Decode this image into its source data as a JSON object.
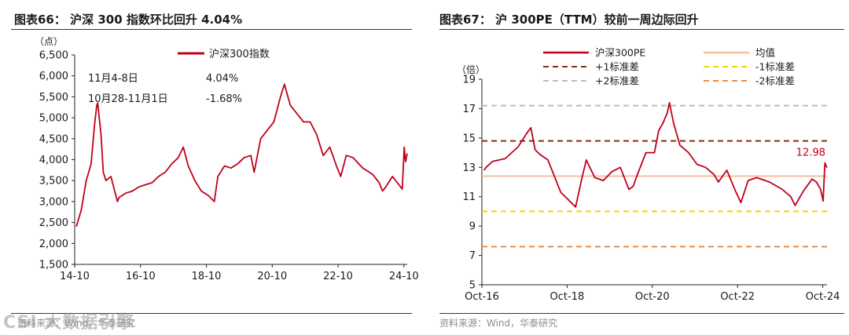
{
  "colors": {
    "index_line": "#c0001a",
    "pe_line": "#c0001a",
    "mean": "#f2c0a0",
    "plus1": "#8b2a12",
    "plus2": "#bdbdbd",
    "minus1": "#f2d400",
    "minus2": "#f08a3c",
    "rule": "#1f3a66"
  },
  "watermark": "CSI 大数据引擎",
  "chart_data": [
    {
      "type": "line",
      "title": "图表66：  沪深 300 指数环比回升 4.04%",
      "ylabel": "（点）",
      "ylim": [
        1500,
        6500
      ],
      "yticks": [
        "1,500",
        "2,000",
        "2,500",
        "3,000",
        "3,500",
        "4,000",
        "4,500",
        "5,000",
        "5,500",
        "6,000",
        "6,500"
      ],
      "xticks": [
        "14-10",
        "16-10",
        "18-10",
        "20-10",
        "22-10",
        "24-10"
      ],
      "legend": "沪深300指数",
      "legend_position": "top-center",
      "annotations": [
        {
          "label": "11月4-8日",
          "value": "4.04%"
        },
        {
          "label": "10月28-11月1日",
          "value": "-1.68%"
        }
      ],
      "series": [
        {
          "name": "沪深300指数",
          "x": [
            2014.8,
            2014.95,
            2015.1,
            2015.25,
            2015.35,
            2015.42,
            2015.45,
            2015.55,
            2015.62,
            2015.7,
            2015.85,
            2016.05,
            2016.1,
            2016.3,
            2016.5,
            2016.7,
            2016.9,
            2017.1,
            2017.3,
            2017.5,
            2017.7,
            2017.9,
            2018.05,
            2018.2,
            2018.4,
            2018.6,
            2018.8,
            2018.99,
            2019.1,
            2019.3,
            2019.5,
            2019.7,
            2019.9,
            2020.1,
            2020.2,
            2020.4,
            2020.6,
            2020.8,
            2021.0,
            2021.12,
            2021.3,
            2021.5,
            2021.7,
            2021.9,
            2022.1,
            2022.3,
            2022.5,
            2022.7,
            2022.83,
            2023.0,
            2023.2,
            2023.5,
            2023.8,
            2024.0,
            2024.1,
            2024.2,
            2024.4,
            2024.6,
            2024.7,
            2024.76,
            2024.8,
            2024.85
          ],
          "values": [
            2400,
            2800,
            3500,
            3900,
            4800,
            5300,
            5350,
            4600,
            3700,
            3500,
            3600,
            3000,
            3100,
            3200,
            3250,
            3350,
            3400,
            3450,
            3600,
            3700,
            3900,
            4050,
            4300,
            3850,
            3500,
            3250,
            3150,
            3000,
            3600,
            3850,
            3800,
            3900,
            4050,
            4100,
            3700,
            4500,
            4700,
            4900,
            5500,
            5800,
            5300,
            5100,
            4900,
            4900,
            4600,
            4100,
            4300,
            3850,
            3600,
            4100,
            4050,
            3800,
            3650,
            3450,
            3250,
            3350,
            3600,
            3400,
            3300,
            4300,
            3950,
            4150
          ]
        }
      ]
    },
    {
      "type": "line",
      "title": "图表67：  沪 300PE（TTM）较前一周边际回升",
      "ylabel": "（倍）",
      "ylim": [
        5,
        19
      ],
      "yticks": [
        "5",
        "7",
        "9",
        "11",
        "13",
        "15",
        "17",
        "19"
      ],
      "xticks": [
        "Oct-16",
        "Oct-18",
        "Oct-20",
        "Oct-22",
        "Oct-24"
      ],
      "legend_position": "top",
      "end_label": "12.98",
      "series": [
        {
          "name": "沪深300PE",
          "x": [
            2016.8,
            2016.85,
            2017.0,
            2017.3,
            2017.6,
            2017.8,
            2017.9,
            2018.0,
            2018.1,
            2018.3,
            2018.6,
            2018.95,
            2019.1,
            2019.2,
            2019.4,
            2019.6,
            2019.8,
            2020.0,
            2020.2,
            2020.3,
            2020.4,
            2020.6,
            2020.8,
            2020.9,
            2021.0,
            2021.1,
            2021.15,
            2021.25,
            2021.4,
            2021.6,
            2021.8,
            2022.0,
            2022.2,
            2022.3,
            2022.5,
            2022.7,
            2022.83,
            2023.0,
            2023.2,
            2023.5,
            2023.8,
            2024.0,
            2024.1,
            2024.3,
            2024.5,
            2024.6,
            2024.7,
            2024.76,
            2024.8,
            2024.85
          ],
          "values": [
            12.8,
            13.0,
            13.4,
            13.6,
            14.4,
            15.3,
            15.7,
            14.2,
            13.9,
            13.5,
            11.3,
            10.3,
            12.3,
            13.5,
            12.3,
            12.1,
            12.7,
            13.0,
            11.5,
            11.7,
            12.5,
            14.0,
            14.0,
            15.5,
            16.0,
            16.7,
            17.4,
            16.0,
            14.5,
            14.0,
            13.2,
            13.0,
            12.5,
            12.0,
            12.8,
            11.4,
            10.6,
            12.1,
            12.3,
            12.0,
            11.5,
            11.0,
            10.4,
            11.4,
            12.2,
            12.0,
            11.5,
            10.7,
            13.3,
            12.98
          ]
        },
        {
          "name": "均值",
          "values": [
            12.4
          ]
        },
        {
          "name": "+1标准差",
          "values": [
            14.8
          ]
        },
        {
          "name": "-1标准差",
          "values": [
            10.0
          ]
        },
        {
          "name": "+2标准差",
          "values": [
            17.2
          ]
        },
        {
          "name": "-2标准差",
          "values": [
            7.6
          ]
        }
      ]
    }
  ],
  "source_left": "资料来源：Wind，华泰研究",
  "source_right": "资料来源：Wind，华泰研究"
}
